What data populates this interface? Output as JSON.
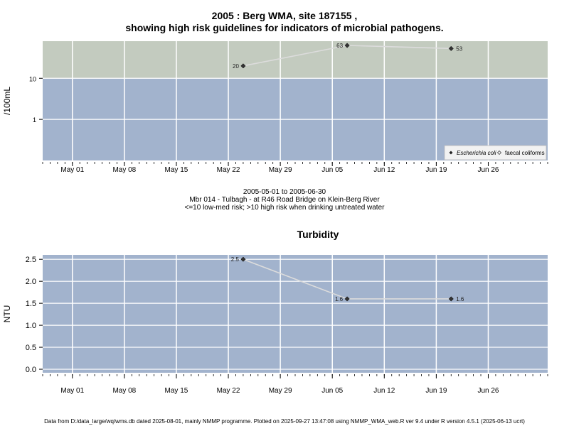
{
  "header": {
    "title_line1": "2005 : Berg WMA, site 187155 ,",
    "title_line2": "showing high risk guidelines for indicators of microbial pathogens."
  },
  "info": {
    "date_range": "2005-05-01 to 2005-06-30",
    "site": "Mbr 014 - Tulbagh - at R46 Road Bridge on Klein-Berg River",
    "guideline": "<=10 low-med risk; >10 high risk when drinking untreated water"
  },
  "footer": {
    "text": "Data from D:/data_large/wq/wms.db dated 2025-08-01, mainly NMMP programme. Plotted on 2025-09-27 13:47:08 using NMMP_WMA_web.R ver 9.4 under R version 4.5.1 (2025-06-13 ucrt)"
  },
  "colors": {
    "high_risk_band": "#c3cbbf",
    "low_risk_band": "#a2b3cd",
    "gridline": "#ffffff",
    "series_line": "#dcdcdc",
    "marker": "#333333"
  },
  "chart_data": [
    {
      "type": "line",
      "title": "",
      "ylabel": "/100mL",
      "y_scale": "log",
      "ylim": [
        0.1,
        80
      ],
      "xlim": [
        "2005-04-27",
        "2005-07-04"
      ],
      "x_ticks": [
        "May 01",
        "May 08",
        "May 15",
        "May 22",
        "May 29",
        "Jun 05",
        "Jun 12",
        "Jun 19",
        "Jun 26"
      ],
      "x_tick_dates": [
        "2005-05-01",
        "2005-05-08",
        "2005-05-15",
        "2005-05-22",
        "2005-05-29",
        "2005-06-05",
        "2005-06-12",
        "2005-06-19",
        "2005-06-26"
      ],
      "y_ticks": [
        "1",
        "10"
      ],
      "y_tick_values": [
        1,
        10
      ],
      "threshold": 10,
      "series": [
        {
          "name": "Escherichia coli",
          "marker": "filled-diamond",
          "x": [
            "2005-05-24",
            "2005-06-07",
            "2005-06-21"
          ],
          "y": [
            20,
            63,
            53
          ],
          "labels": [
            "20",
            "63",
            "53"
          ]
        }
      ],
      "legend": {
        "position": "bottom-right",
        "entries": [
          "Escherichia coli",
          "faecal coliforms"
        ]
      }
    },
    {
      "type": "line",
      "title": "Turbidity",
      "ylabel": "NTU",
      "y_scale": "linear",
      "ylim": [
        -0.08,
        2.6
      ],
      "xlim": [
        "2005-04-27",
        "2005-07-04"
      ],
      "x_ticks": [
        "May 01",
        "May 08",
        "May 15",
        "May 22",
        "May 29",
        "Jun 05",
        "Jun 12",
        "Jun 19",
        "Jun 26"
      ],
      "x_tick_dates": [
        "2005-05-01",
        "2005-05-08",
        "2005-05-15",
        "2005-05-22",
        "2005-05-29",
        "2005-06-05",
        "2005-06-12",
        "2005-06-19",
        "2005-06-26"
      ],
      "y_ticks": [
        "0.0",
        "0.5",
        "1.0",
        "1.5",
        "2.0",
        "2.5"
      ],
      "y_tick_values": [
        0,
        0.5,
        1,
        1.5,
        2,
        2.5
      ],
      "series": [
        {
          "name": "",
          "marker": "filled-diamond",
          "x": [
            "2005-05-24",
            "2005-06-07",
            "2005-06-21"
          ],
          "y": [
            2.5,
            1.6,
            1.6
          ],
          "labels": [
            "2.5",
            "1.6",
            "1.6"
          ]
        }
      ]
    }
  ]
}
